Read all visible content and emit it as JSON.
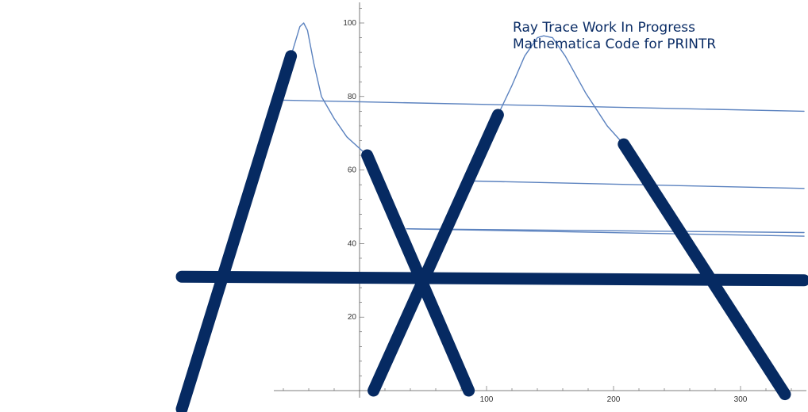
{
  "chart_data": {
    "type": "line",
    "title_lines": [
      "Ray Trace Work In Progress",
      "Mathematica Code for PRINTR"
    ],
    "x_ticks": [
      {
        "value": 100,
        "label": "100"
      },
      {
        "value": 200,
        "label": "200"
      },
      {
        "value": 300,
        "label": "300"
      }
    ],
    "y_ticks": [
      {
        "value": 20,
        "label": "20"
      },
      {
        "value": 40,
        "label": "40"
      },
      {
        "value": 60,
        "label": "60"
      },
      {
        "value": 80,
        "label": "80"
      },
      {
        "value": 100,
        "label": "100"
      }
    ],
    "xlim": [
      -66,
      350
    ],
    "ylim": [
      -5,
      106
    ],
    "grid": false,
    "colors": {
      "thick": "#062a62",
      "thin": "#5b82bf",
      "axis": "#555555",
      "title": "#0b2d66"
    },
    "series": [
      {
        "style": "thick",
        "points": [
          [
            -140,
            -5
          ],
          [
            -54,
            91
          ]
        ]
      },
      {
        "style": "thick",
        "points": [
          [
            6,
            64
          ],
          [
            86,
            0
          ]
        ]
      },
      {
        "style": "thick",
        "points": [
          [
            11,
            0
          ],
          [
            109,
            75
          ]
        ]
      },
      {
        "style": "thick",
        "points": [
          [
            208,
            67
          ],
          [
            335,
            -1
          ]
        ]
      },
      {
        "style": "thick",
        "points": [
          [
            -140,
            31
          ],
          [
            350,
            30
          ]
        ]
      },
      {
        "style": "thin",
        "points": [
          [
            -54,
            91
          ],
          [
            -47,
            99
          ],
          [
            -44,
            100
          ],
          [
            -41,
            98
          ],
          [
            -36,
            89
          ],
          [
            -30,
            80
          ],
          [
            -20,
            74
          ],
          [
            -10,
            69
          ],
          [
            6,
            64
          ]
        ]
      },
      {
        "style": "thin",
        "points": [
          [
            109,
            75
          ],
          [
            120,
            83
          ],
          [
            130,
            91
          ],
          [
            140,
            96
          ],
          [
            145,
            96.5
          ],
          [
            152,
            96
          ],
          [
            162,
            91
          ],
          [
            178,
            81
          ],
          [
            195,
            72
          ],
          [
            208,
            67
          ]
        ]
      },
      {
        "style": "thin",
        "points": [
          [
            -60,
            79
          ],
          [
            350,
            76
          ]
        ]
      },
      {
        "style": "thin",
        "points": [
          [
            90,
            57
          ],
          [
            350,
            55
          ]
        ]
      },
      {
        "style": "thin",
        "points": [
          [
            37,
            44
          ],
          [
            350,
            43
          ]
        ]
      },
      {
        "style": "thin",
        "points": [
          [
            37,
            44
          ],
          [
            350,
            42
          ]
        ]
      }
    ]
  }
}
